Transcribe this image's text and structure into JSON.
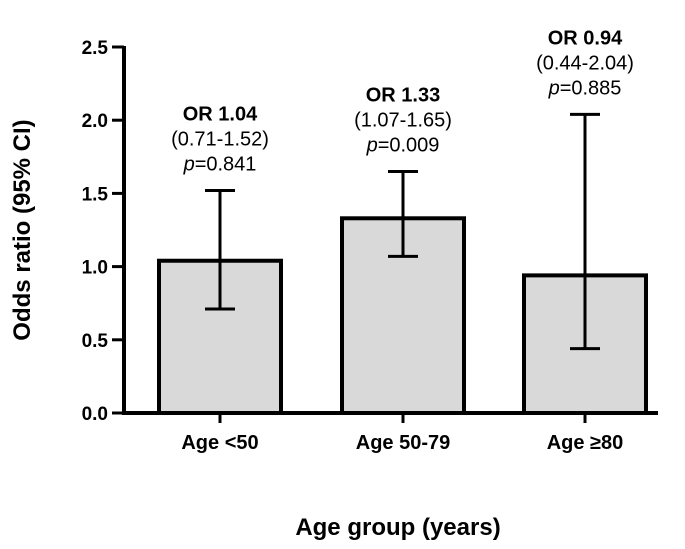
{
  "chart_data": {
    "type": "bar",
    "title": "",
    "xlabel": "Age group (years)",
    "ylabel": "Odds ratio (95% CI)",
    "ylim": [
      0,
      2.5
    ],
    "yticks": [
      "0.0",
      "0.5",
      "1.0",
      "1.5",
      "2.0",
      "2.5"
    ],
    "grid": false,
    "bar_color": "#d9d9d9",
    "edge_color": "#000000",
    "categories": [
      "Age <50",
      "Age 50-79",
      "Age ≥80"
    ],
    "values": [
      1.04,
      1.33,
      0.94
    ],
    "ci_lower": [
      0.71,
      1.07,
      0.44
    ],
    "ci_upper": [
      1.52,
      1.65,
      2.04
    ],
    "annotations": [
      {
        "or_text": "OR 1.04",
        "ci_text": "(0.71-1.52)",
        "p_symbol": "p",
        "p_value": "=0.841"
      },
      {
        "or_text": "OR 1.33",
        "ci_text": "(1.07-1.65)",
        "p_symbol": "p",
        "p_value": "=0.009"
      },
      {
        "or_text": "OR 0.94",
        "ci_text": "(0.44-2.04)",
        "p_symbol": "p",
        "p_value": "=0.885"
      }
    ]
  }
}
